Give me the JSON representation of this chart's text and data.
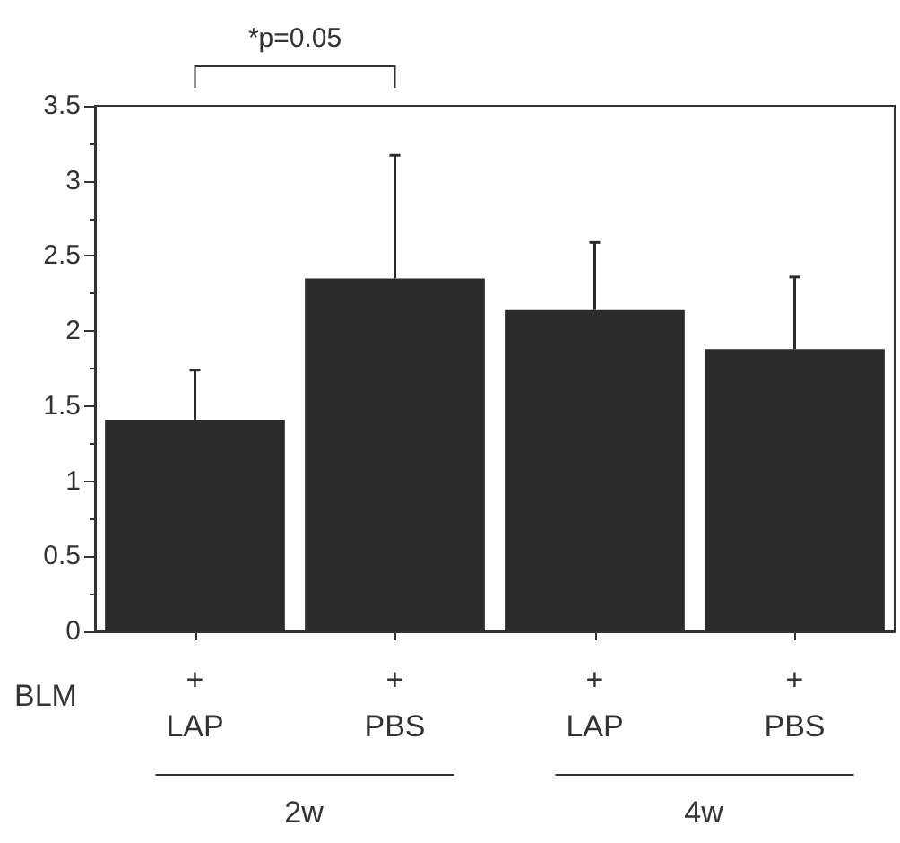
{
  "chart_data": {
    "type": "bar",
    "categories": [
      "+\nLAP",
      "+\nPBS",
      "+\nLAP",
      "+\nPBS"
    ],
    "values": [
      1.41,
      2.35,
      2.14,
      1.88
    ],
    "color": "#2b2b2b",
    "errors": [
      [
        1.41,
        1.74
      ],
      [
        2.35,
        3.17
      ],
      [
        2.14,
        2.59
      ],
      [
        1.88,
        2.36
      ]
    ],
    "ylim": [
      0,
      3.5
    ],
    "yticks": [
      0,
      0.5,
      1,
      1.5,
      2,
      2.5,
      3,
      3.5
    ],
    "grid": false,
    "annotations": [
      "*p=0.05",
      "BLM",
      "2w",
      "4w"
    ]
  }
}
